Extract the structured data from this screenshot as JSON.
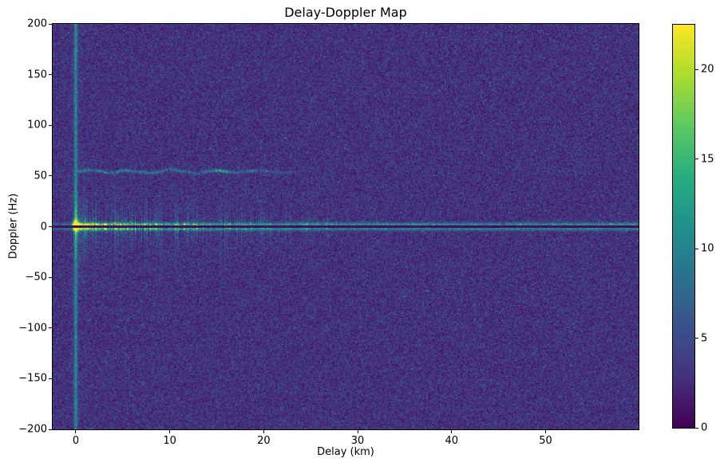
{
  "figure": {
    "background_color": "#ffffff",
    "text_color": "#000000"
  },
  "chart_data": {
    "type": "heatmap",
    "title": "Delay-Doppler Map",
    "xlabel": "Delay (km)",
    "ylabel": "Doppler (Hz)",
    "x_range_km": [
      -2.46,
      59.9
    ],
    "y_range_hz": [
      -200,
      200
    ],
    "x_ticks": [
      0,
      10,
      20,
      30,
      40,
      50
    ],
    "y_ticks": [
      200,
      150,
      100,
      50,
      0,
      -50,
      -100,
      -150,
      -200
    ],
    "grid": false,
    "colormap": "viridis",
    "colorbar": {
      "position": "right",
      "ticks": [
        0,
        5,
        10,
        15,
        20
      ],
      "value_range": [
        0,
        22.5
      ]
    },
    "value_range": [
      0,
      22.5
    ],
    "noise_floor": {
      "mean_value": 3.0,
      "description": "speckled dark blue-purple background noise"
    },
    "features": {
      "direct_path": {
        "name": "direct-path peak",
        "delay_km": 0,
        "doppler_hz": 2,
        "peak_value": 22.5,
        "description": "bright yellow blob at origin with vertical flare"
      },
      "zero_delay_column": {
        "name": "zero-delay vertical line",
        "delay_km": 0,
        "value": 8.5,
        "description": "teal vertical stripe spanning all Doppler"
      },
      "clutter_ridge": {
        "name": "zero-Doppler clutter ridge",
        "doppler_hz": 0,
        "delay_extent_km": [
          -2.46,
          59.9
        ],
        "value_near": 15,
        "value_far": 7.5,
        "notch_value": 0.8,
        "description": "bright horizontal band with dark canceled line exactly at 0 Hz"
      },
      "clutter_flares": {
        "name": "clutter Doppler flares",
        "delay_extent_km": [
          0,
          27
        ],
        "doppler_halfwidth_hz": 25,
        "value": 10,
        "description": "vertical speckle streaks around 0 Hz, fading with delay"
      },
      "target_line": {
        "name": "target echo line",
        "doppler_hz": 55,
        "delay_extent_km": [
          0,
          26
        ],
        "fade_start_km": 17,
        "value": 9,
        "bright_segment_km": 15.6,
        "description": "wavy intermittent teal line at +55 Hz"
      }
    }
  }
}
